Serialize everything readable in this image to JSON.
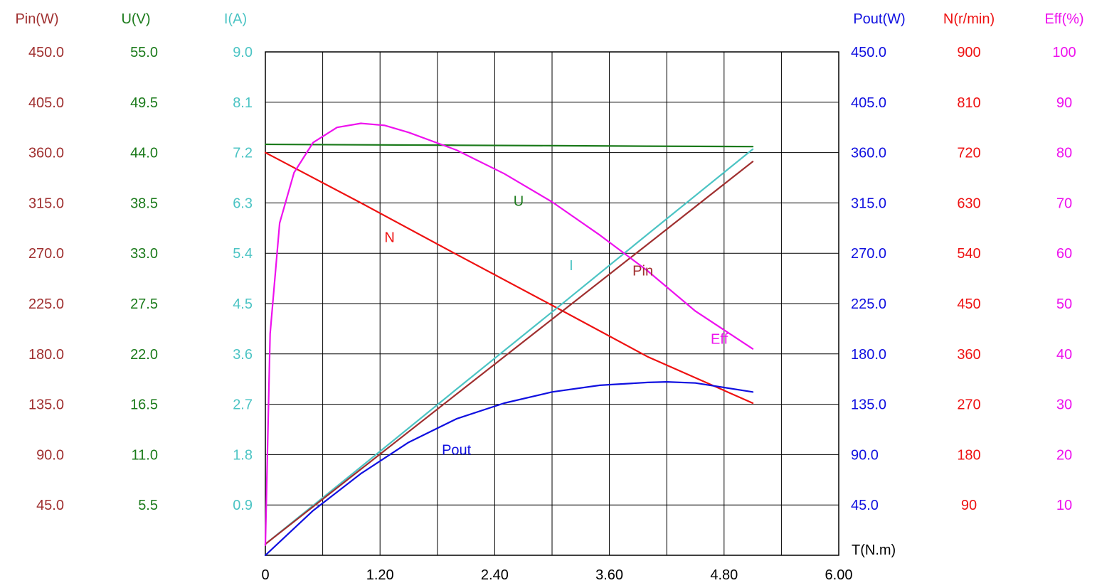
{
  "chart_data": {
    "type": "line",
    "x": {
      "label": "T(N.m)",
      "range": [
        0,
        6
      ],
      "ticks": [
        "0",
        "1.20",
        "2.40",
        "3.60",
        "4.80",
        "6.00"
      ]
    },
    "grid": true,
    "axes": [
      {
        "id": "pin",
        "side": "left",
        "title": "Pin(W)",
        "color": "#a03030",
        "range": [
          0,
          450
        ],
        "ticks": [
          "450.0",
          "405.0",
          "360.0",
          "315.0",
          "270.0",
          "225.0",
          "180.0",
          "135.0",
          "90.0",
          "45.0"
        ]
      },
      {
        "id": "u",
        "side": "left",
        "title": "U(V)",
        "color": "#1a7a1a",
        "range": [
          0,
          55
        ],
        "ticks": [
          "55.0",
          "49.5",
          "44.0",
          "38.5",
          "33.0",
          "27.5",
          "22.0",
          "16.5",
          "11.0",
          "5.5"
        ]
      },
      {
        "id": "i",
        "side": "left",
        "title": "I(A)",
        "color": "#4cc4c4",
        "range": [
          0,
          9
        ],
        "ticks": [
          "9.0",
          "8.1",
          "7.2",
          "6.3",
          "5.4",
          "4.5",
          "3.6",
          "2.7",
          "1.8",
          "0.9"
        ]
      },
      {
        "id": "pout",
        "side": "right",
        "title": "Pout(W)",
        "color": "#1010e0",
        "range": [
          0,
          450
        ],
        "ticks": [
          "450.0",
          "405.0",
          "360.0",
          "315.0",
          "270.0",
          "225.0",
          "180.0",
          "135.0",
          "90.0",
          "45.0"
        ]
      },
      {
        "id": "n",
        "side": "right",
        "title": "N(r/min)",
        "color": "#ee1111",
        "range": [
          0,
          900
        ],
        "ticks": [
          "900",
          "810",
          "720",
          "630",
          "540",
          "450",
          "360",
          "270",
          "180",
          "90"
        ]
      },
      {
        "id": "eff",
        "side": "right",
        "title": "Eff(%)",
        "color": "#ee11ee",
        "range": [
          0,
          100
        ],
        "ticks": [
          "100",
          "90",
          "80",
          "70",
          "60",
          "50",
          "40",
          "30",
          "20",
          "10"
        ]
      }
    ],
    "series": [
      {
        "name": "U",
        "axis": "u",
        "color": "#1a7a1a",
        "label_at": [
          2.65,
          38.2
        ],
        "x": [
          0,
          1.0,
          2.0,
          3.0,
          4.0,
          5.1
        ],
        "y": [
          44.9,
          44.85,
          44.8,
          44.75,
          44.7,
          44.65
        ]
      },
      {
        "name": "N",
        "axis": "n",
        "color": "#ee1111",
        "label_at": [
          1.3,
          560
        ],
        "x": [
          0,
          1.0,
          2.0,
          3.0,
          4.0,
          5.1
        ],
        "y": [
          720,
          630,
          538,
          447,
          355,
          272
        ]
      },
      {
        "name": "I",
        "axis": "i",
        "color": "#4cc4c4",
        "label_at": [
          3.2,
          5.1
        ],
        "x": [
          0,
          1.0,
          2.0,
          3.0,
          4.0,
          5.1
        ],
        "y": [
          0.2,
          1.58,
          2.97,
          4.35,
          5.74,
          7.26
        ]
      },
      {
        "name": "Pin",
        "axis": "pin",
        "color": "#a03030",
        "label_at": [
          3.95,
          250
        ],
        "x": [
          0,
          1.0,
          2.0,
          3.0,
          4.0,
          5.1
        ],
        "y": [
          10,
          77,
          144,
          211,
          278,
          352
        ]
      },
      {
        "name": "Eff",
        "axis": "eff",
        "color": "#ee11ee",
        "label_at": [
          4.75,
          42
        ],
        "x": [
          0,
          0.05,
          0.15,
          0.3,
          0.5,
          0.75,
          1.0,
          1.25,
          1.5,
          2.0,
          2.5,
          3.0,
          3.5,
          4.0,
          4.5,
          5.1
        ],
        "y": [
          2,
          44,
          66,
          76,
          82,
          85,
          85.8,
          85.4,
          84,
          80.5,
          75.8,
          70.2,
          63.6,
          56.5,
          48.5,
          41
        ]
      },
      {
        "name": "Pout",
        "axis": "pout",
        "color": "#1010e0",
        "label_at": [
          2.0,
          90
        ],
        "x": [
          0,
          0.5,
          1.0,
          1.5,
          2.0,
          2.5,
          3.0,
          3.5,
          4.0,
          4.2,
          4.5,
          5.1
        ],
        "y": [
          0,
          40,
          73,
          101,
          122,
          136,
          146,
          152,
          154.5,
          155,
          154,
          146
        ]
      }
    ]
  }
}
